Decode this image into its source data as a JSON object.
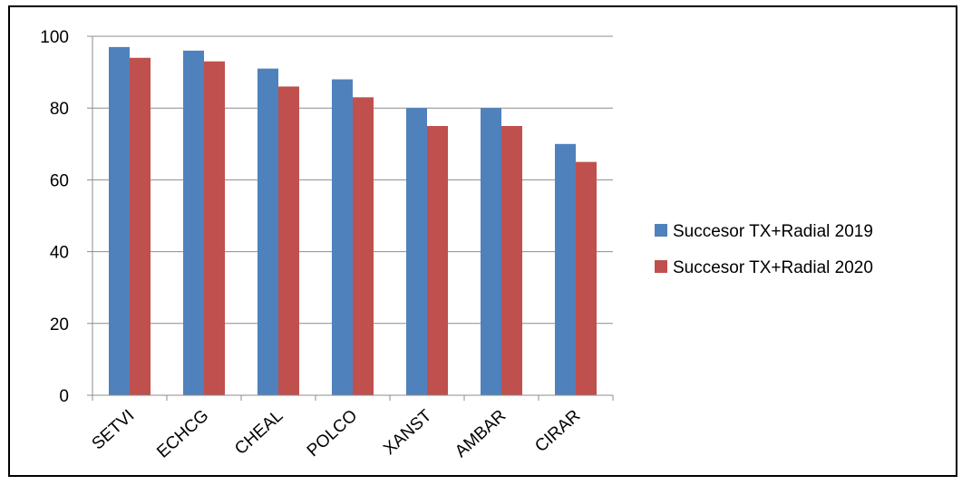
{
  "chart_data": {
    "type": "bar",
    "categories": [
      "SETVI",
      "ECHCG",
      "CHEAL",
      "POLCO",
      "XANST",
      "AMBAR",
      "CIRAR"
    ],
    "series": [
      {
        "name": "Succesor TX+Radial 2019",
        "values": [
          97,
          96,
          91,
          88,
          80,
          80,
          70
        ],
        "color": "#4F81BD"
      },
      {
        "name": "Succesor TX+Radial 2020",
        "values": [
          94,
          93,
          86,
          83,
          75,
          75,
          65
        ],
        "color": "#C0504D"
      }
    ],
    "ylim": [
      0,
      100
    ],
    "yticks": [
      0,
      20,
      40,
      60,
      80,
      100
    ],
    "grid": true,
    "legend": "right",
    "title": "",
    "xlabel": "",
    "ylabel": ""
  }
}
